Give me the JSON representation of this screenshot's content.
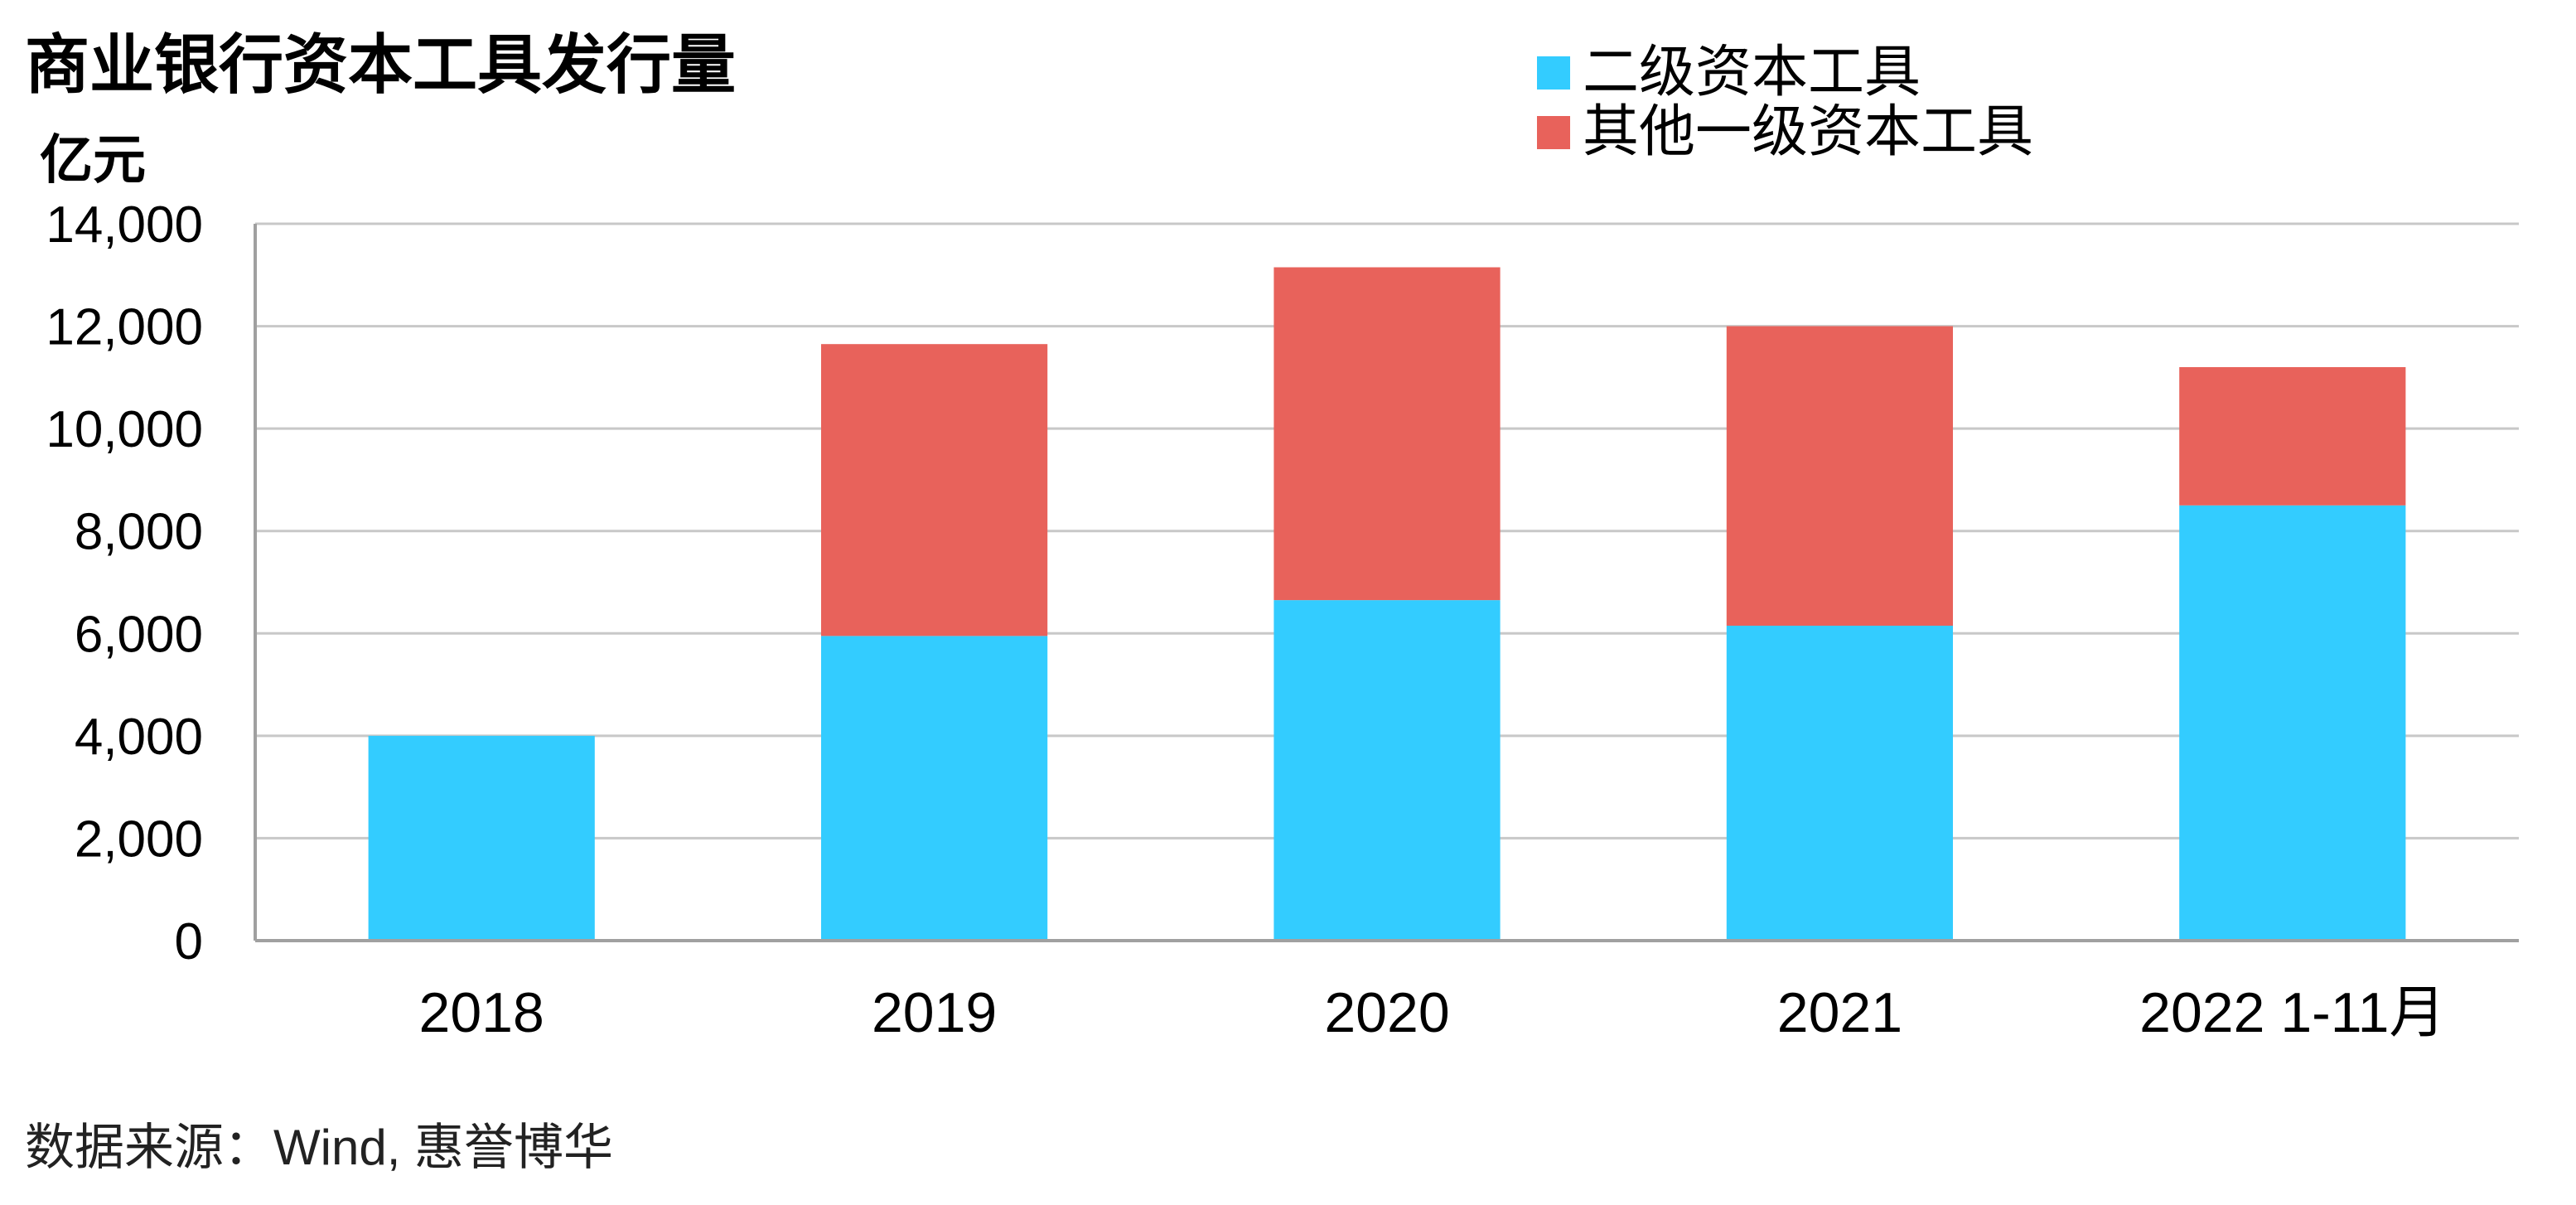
{
  "title": "商业银行资本工具发行量",
  "unit": "亿元",
  "source": "数据来源：Wind, 惠誉博华",
  "colors": {
    "tier2": "#33CCFF",
    "at1": "#E8625B",
    "grid": "#C8C8C8"
  },
  "chart_data": {
    "type": "bar",
    "stacked": true,
    "categories": [
      "2018",
      "2019",
      "2020",
      "2021",
      "2022 1-11月"
    ],
    "series": [
      {
        "name": "二级资本工具",
        "values": [
          4000,
          5950,
          6650,
          6150,
          8500
        ]
      },
      {
        "name": "其他一级资本工具",
        "values": [
          0,
          5700,
          6500,
          5850,
          2700
        ]
      }
    ],
    "ylim": [
      0,
      14000
    ],
    "yticks": [
      0,
      2000,
      4000,
      6000,
      8000,
      10000,
      12000,
      14000
    ],
    "ytick_labels": [
      "0",
      "2,000",
      "4,000",
      "6,000",
      "8,000",
      "10,000",
      "12,000",
      "14,000"
    ],
    "xlabel": "",
    "ylabel": "亿元",
    "grid": true,
    "legend_position": "top-right"
  }
}
